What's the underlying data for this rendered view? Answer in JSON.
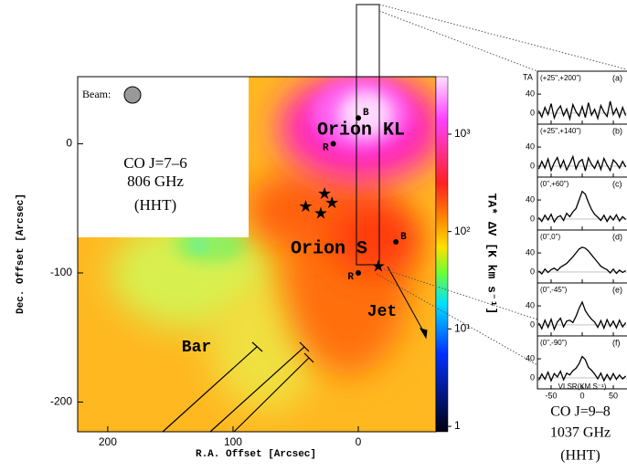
{
  "map": {
    "inset": {
      "beam_label": "Beam:",
      "line": "CO J=7–6",
      "freq": "806 GHz",
      "telescope": "(HHT)"
    },
    "labels": {
      "orion_kl": "Orion KL",
      "orion_s": "Orion S",
      "jet": "Jet",
      "bar": "Bar"
    },
    "x_label": "R.A. Offset [Arcsec]",
    "y_label": "Dec. Offset [Arcsec]",
    "xlim": [
      224,
      -62
    ],
    "xticks": [
      200,
      100,
      0
    ],
    "ylim": [
      52,
      -223
    ],
    "yticks": [
      0,
      -100,
      -200
    ],
    "sources": [
      {
        "label": "B",
        "ra": 0,
        "dec": 20
      },
      {
        "label": "R",
        "ra": 20,
        "dec": 0
      },
      {
        "label": "B",
        "ra": -30,
        "dec": -76
      },
      {
        "label": "R",
        "ra": 0,
        "dec": -100
      }
    ],
    "stars": [
      {
        "ra": 42,
        "dec": -48
      },
      {
        "ra": 30,
        "dec": -53
      },
      {
        "ra": 27,
        "dec": -38
      },
      {
        "ra": 21,
        "dec": -45
      },
      {
        "ra": -16,
        "dec": -94
      }
    ]
  },
  "colorbar": {
    "label": "TA* ΔV [K km s⁻¹]",
    "log": true,
    "lim": [
      3890,
      0.88
    ],
    "ticks": [
      {
        "value": 1000,
        "label": "10³"
      },
      {
        "value": 100,
        "label": "10²"
      },
      {
        "value": 10,
        "label": "10¹"
      },
      1
    ]
  },
  "spectra": {
    "y_label": "TA",
    "x_label": "VLSR(KM S⁻¹)",
    "xlim": [
      -72,
      72
    ],
    "xticks": [
      -50,
      0,
      50
    ],
    "ylim": [
      -23,
      88
    ],
    "yticks": [
      0,
      40
    ],
    "velocity": [
      -70,
      -65,
      -60,
      -55,
      -50,
      -45,
      -40,
      -35,
      -30,
      -25,
      -20,
      -15,
      -10,
      -5,
      0,
      5,
      10,
      15,
      20,
      25,
      30,
      35,
      40,
      45,
      50,
      55,
      60,
      65,
      70
    ],
    "panels": [
      {
        "offset": "(+25\",+200\")",
        "tag": "(a)",
        "values": [
          5,
          -8,
          12,
          -3,
          20,
          -10,
          6,
          15,
          -5,
          9,
          -12,
          18,
          3,
          -6,
          14,
          -9,
          22,
          -4,
          8,
          -11,
          16,
          2,
          -7,
          25,
          -3,
          10,
          -8,
          12,
          -5
        ]
      },
      {
        "offset": "(+25\",+140\")",
        "tag": "(b)",
        "values": [
          -6,
          10,
          -4,
          15,
          -9,
          7,
          18,
          -3,
          12,
          -8,
          5,
          20,
          -6,
          9,
          14,
          -10,
          17,
          4,
          -5,
          11,
          -7,
          16,
          2,
          -9,
          13,
          6,
          -4,
          10,
          -2
        ]
      },
      {
        "offset": "(0\",+60\")",
        "tag": "(c)",
        "values": [
          3,
          -5,
          8,
          -2,
          10,
          -6,
          4,
          7,
          -3,
          12,
          5,
          15,
          22,
          40,
          58,
          52,
          35,
          20,
          10,
          4,
          -3,
          8,
          -5,
          6,
          -2,
          9,
          -4,
          5,
          -1
        ]
      },
      {
        "offset": "(0\",0\")",
        "tag": "(d)",
        "values": [
          2,
          -4,
          6,
          -1,
          5,
          8,
          3,
          10,
          14,
          18,
          25,
          32,
          40,
          48,
          52,
          50,
          44,
          36,
          28,
          20,
          12,
          8,
          5,
          -2,
          6,
          -3,
          4,
          -1,
          3
        ]
      },
      {
        "offset": "(0\",-45\")",
        "tag": "(e)",
        "values": [
          4,
          -8,
          10,
          -5,
          12,
          -9,
          6,
          14,
          -4,
          8,
          10,
          5,
          18,
          35,
          48,
          30,
          20,
          12,
          6,
          -5,
          9,
          -7,
          11,
          -3,
          8,
          -6,
          10,
          -4,
          5
        ]
      },
      {
        "offset": "(0\",-90\")",
        "tag": "(f)",
        "values": [
          -5,
          8,
          -3,
          12,
          -6,
          9,
          2,
          14,
          -4,
          10,
          6,
          15,
          20,
          30,
          45,
          38,
          22,
          16,
          8,
          -2,
          10,
          -6,
          7,
          -4,
          9,
          -3,
          6,
          -2,
          4
        ]
      }
    ],
    "caption": {
      "line": "CO J=9–8",
      "freq": "1037 GHz",
      "telescope": "(HHT)"
    }
  }
}
